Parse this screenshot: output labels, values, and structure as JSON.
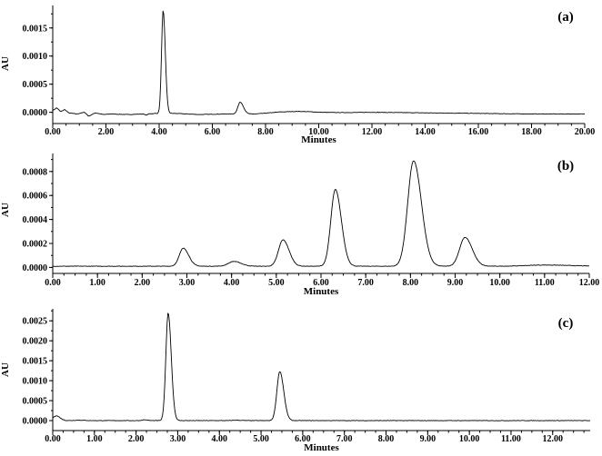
{
  "chart_data": [
    {
      "type": "line",
      "panel_label": "(a)",
      "xlabel": "Minutes",
      "ylabel": "AU",
      "xlim": [
        0,
        20
      ],
      "ylim": [
        -0.0002,
        0.0019
      ],
      "x_ticks": [
        "0.00",
        "2.00",
        "4.00",
        "6.00",
        "8.00",
        "10.00",
        "12.00",
        "14.00",
        "16.00",
        "18.00",
        "20.00"
      ],
      "x_tick_values": [
        0,
        2,
        4,
        6,
        8,
        10,
        12,
        14,
        16,
        18,
        20
      ],
      "y_ticks": [
        "0.0000",
        "0.0005",
        "0.0010",
        "0.0015"
      ],
      "y_tick_values": [
        0,
        0.0005,
        0.001,
        0.0015
      ],
      "series": [
        {
          "baseline": 2e-05,
          "points": [
            [
              0,
              3e-05
            ],
            [
              0.15,
              8e-05
            ],
            [
              0.3,
              1e-05
            ],
            [
              0.45,
              5e-05
            ],
            [
              0.6,
              -1e-05
            ],
            [
              0.9,
              -3e-05
            ],
            [
              1.2,
              0.0
            ],
            [
              1.35,
              -7e-05
            ],
            [
              1.6,
              -1e-05
            ],
            [
              1.9,
              -4e-05
            ],
            [
              2.2,
              -3e-05
            ],
            [
              2.8,
              -4e-05
            ],
            [
              3.4,
              -3e-05
            ],
            [
              3.55,
              -6e-05
            ],
            [
              3.7,
              -3e-05
            ],
            [
              3.85,
              -2e-05
            ]
          ],
          "peaks": [
            {
              "t": 4.15,
              "h": 0.00183,
              "w": 0.06
            },
            {
              "t": 7.05,
              "h": 0.00021,
              "w": 0.09
            },
            {
              "t": 9.3,
              "h": 2e-05,
              "w": 0.5
            },
            {
              "t": 3.6,
              "h": 2e-05,
              "w": 0.05
            }
          ],
          "tail": [
            [
              4.6,
              -2e-05
            ],
            [
              5.5,
              -4e-05
            ],
            [
              6.5,
              -3e-05
            ],
            [
              7.6,
              -3e-05
            ],
            [
              8.5,
              0.0
            ],
            [
              10.0,
              -1e-05
            ],
            [
              12.0,
              0.0
            ],
            [
              14.0,
              -1e-05
            ],
            [
              16.0,
              -2e-05
            ],
            [
              18.0,
              -3e-05
            ],
            [
              20.0,
              -3e-05
            ]
          ]
        }
      ]
    },
    {
      "type": "line",
      "panel_label": "(b)",
      "xlabel": "Minutes",
      "ylabel": "AU",
      "xlim": [
        0,
        12
      ],
      "ylim": [
        -5e-05,
        0.00095
      ],
      "x_ticks": [
        "0.00",
        "1.00",
        "2.00",
        "3.00",
        "4.00",
        "5.00",
        "6.00",
        "7.00",
        "8.00",
        "9.00",
        "10.00",
        "11.00",
        "12.00"
      ],
      "x_tick_values": [
        0,
        1,
        2,
        3,
        4,
        5,
        6,
        7,
        8,
        9,
        10,
        11,
        12
      ],
      "y_ticks": [
        "0.0000",
        "0.0002",
        "0.0004",
        "0.0006",
        "0.0008"
      ],
      "y_tick_values": [
        0,
        0.0002,
        0.0004,
        0.0006,
        0.0008
      ],
      "series": [
        {
          "baseline": 1e-05,
          "peaks": [
            {
              "t": 2.92,
              "h": 0.00015,
              "w": 0.09
            },
            {
              "t": 4.05,
              "h": 4e-05,
              "w": 0.12
            },
            {
              "t": 5.15,
              "h": 0.00022,
              "w": 0.1
            },
            {
              "t": 6.32,
              "h": 0.00064,
              "w": 0.1
            },
            {
              "t": 8.07,
              "h": 0.00088,
              "w": 0.13
            },
            {
              "t": 9.22,
              "h": 0.00024,
              "w": 0.12
            },
            {
              "t": 11.0,
              "h": 1e-05,
              "w": 0.4
            }
          ]
        }
      ]
    },
    {
      "type": "line",
      "panel_label": "(c)",
      "xlabel": "Minutes",
      "ylabel": "AU",
      "xlim": [
        0,
        12.9
      ],
      "ylim": [
        -0.00025,
        0.0028
      ],
      "x_ticks": [
        "0.00",
        "1.00",
        "2.00",
        "3.00",
        "4.00",
        "5.00",
        "6.00",
        "7.00",
        "8.00",
        "9.00",
        "10.00",
        "11.00",
        "12.00"
      ],
      "x_tick_values": [
        0,
        1,
        2,
        3,
        4,
        5,
        6,
        7,
        8,
        9,
        10,
        11,
        12
      ],
      "y_ticks": [
        "0.0000",
        "0.0005",
        "0.0010",
        "0.0015",
        "0.0020",
        "0.0025"
      ],
      "y_tick_values": [
        0,
        0.0005,
        0.001,
        0.0015,
        0.002,
        0.0025
      ],
      "series": [
        {
          "baseline": 0.0,
          "peaks": [
            {
              "t": 0.08,
              "h": 0.00012,
              "w": 0.07
            },
            {
              "t": 0.62,
              "h": 1e-05,
              "w": 0.1
            },
            {
              "t": 2.2,
              "h": 2e-05,
              "w": 0.05
            },
            {
              "t": 2.77,
              "h": 0.0027,
              "w": 0.055
            },
            {
              "t": 4.4,
              "h": 1e-05,
              "w": 0.08
            },
            {
              "t": 5.45,
              "h": 0.00123,
              "w": 0.07
            }
          ]
        }
      ]
    }
  ]
}
